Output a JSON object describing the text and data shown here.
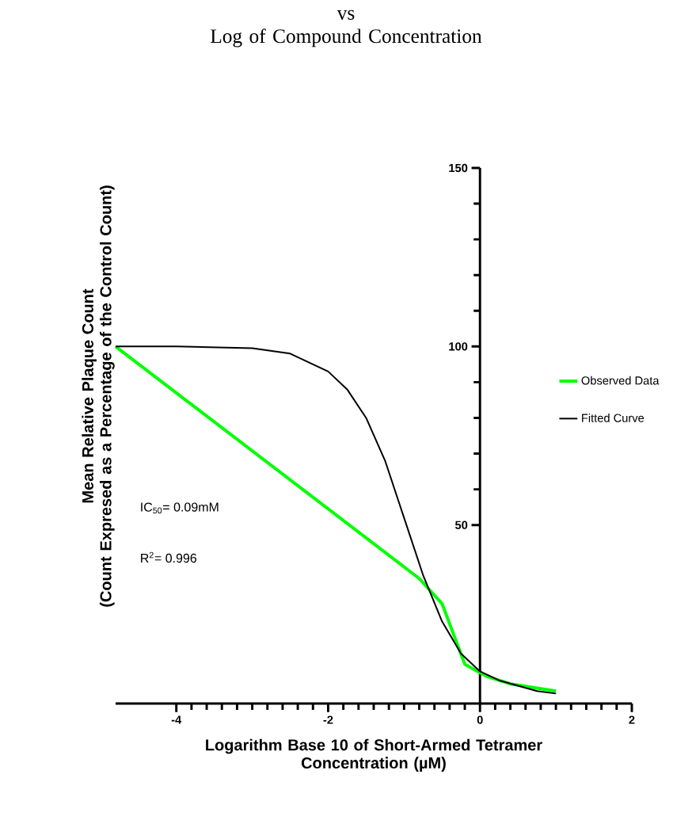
{
  "chart_data": {
    "type": "line",
    "title": "vs\nLog of Compound Concentration",
    "xlabel": "Logarithm Base 10 of Short-Armed Tetramer\nConcentration (µM)",
    "ylabel": "Mean Relative Plaque Count\n(Count Expresed as a Percentage of the Control Count)",
    "xlim": [
      -4.8,
      2
    ],
    "ylim": [
      0,
      150
    ],
    "xticks": [
      -4,
      -2,
      0,
      2
    ],
    "yticks": [
      50,
      100,
      150
    ],
    "series": [
      {
        "name": "Observed Data",
        "color": "#00ff00",
        "x": [
          -4.8,
          -0.8,
          -0.5,
          -0.2,
          0.1,
          0.4,
          1.0
        ],
        "values": [
          100,
          35,
          28,
          11,
          7.5,
          5.5,
          3.5
        ]
      },
      {
        "name": "Fitted Curve",
        "color": "#000000",
        "x": [
          -4.8,
          -4,
          -3,
          -2.5,
          -2,
          -1.75,
          -1.5,
          -1.25,
          -1,
          -0.75,
          -0.5,
          -0.25,
          0,
          0.25,
          0.5,
          0.75,
          1.0
        ],
        "values": [
          100,
          100,
          99.5,
          98,
          93,
          88,
          80,
          68,
          52,
          36,
          23,
          14,
          9,
          6.5,
          5,
          3.5,
          2.8
        ]
      }
    ],
    "annotations": [
      "IC$_{50}$= 0.09mM",
      "R$^{2}$= 0.996"
    ],
    "legend": "right",
    "grid": false,
    "marker": "none",
    "line_style": "solid"
  }
}
